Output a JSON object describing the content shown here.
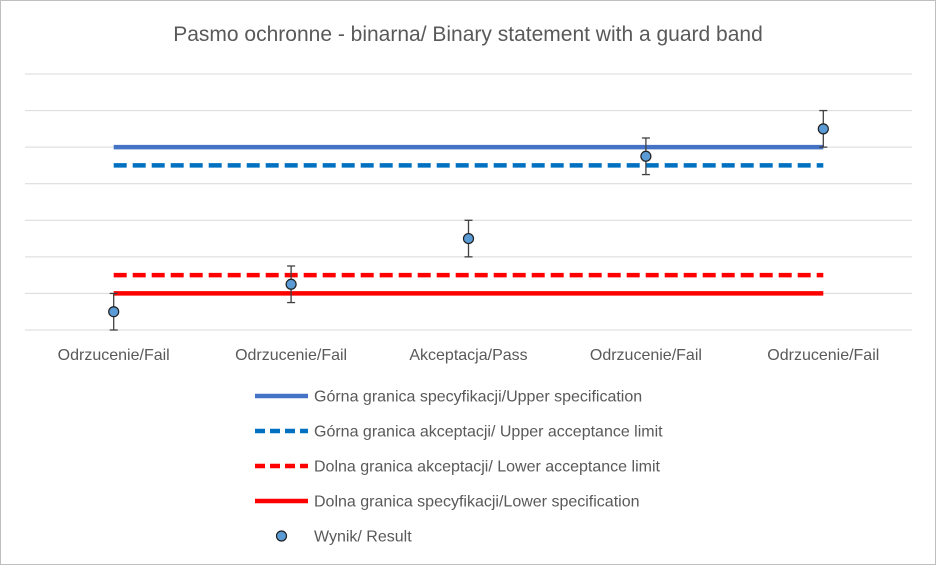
{
  "chart_data": {
    "type": "scatter",
    "title": "Pasmo ochronne - binarna/ Binary statement with a guard band",
    "xlabel": "",
    "ylabel": "",
    "categories": [
      "Odrzucenie/Fail",
      "Odrzucenie/Fail",
      "Akceptacja/Pass",
      "Odrzucenie/Fail",
      "Odrzucenie/Fail"
    ],
    "ylim": [
      0,
      7
    ],
    "y_grid_step": 1,
    "grid": true,
    "legend_position": "bottom",
    "series": [
      {
        "name": "Górna granica specyfikacji/Upper specification",
        "kind": "line",
        "style": "solid",
        "color": "#4472C4",
        "values": [
          5,
          5,
          5,
          5,
          5
        ]
      },
      {
        "name": "Górna granica akceptacji/ Upper acceptance limit",
        "kind": "line",
        "style": "dashed",
        "color": "#0070C0",
        "values": [
          4.5,
          4.5,
          4.5,
          4.5,
          4.5
        ]
      },
      {
        "name": "Dolna granica akceptacji/ Lower acceptance limit",
        "kind": "line",
        "style": "dashed",
        "color": "#FF0000",
        "values": [
          1.5,
          1.5,
          1.5,
          1.5,
          1.5
        ]
      },
      {
        "name": "Dolna granica specyfikacji/Lower specification",
        "kind": "line",
        "style": "solid",
        "color": "#FF0000",
        "values": [
          1,
          1,
          1,
          1,
          1
        ]
      },
      {
        "name": "Wynik/ Result",
        "kind": "marker",
        "color": "#5B9BD5",
        "values": [
          0.5,
          1.25,
          2.5,
          4.75,
          5.5
        ],
        "error": 0.5
      }
    ]
  }
}
